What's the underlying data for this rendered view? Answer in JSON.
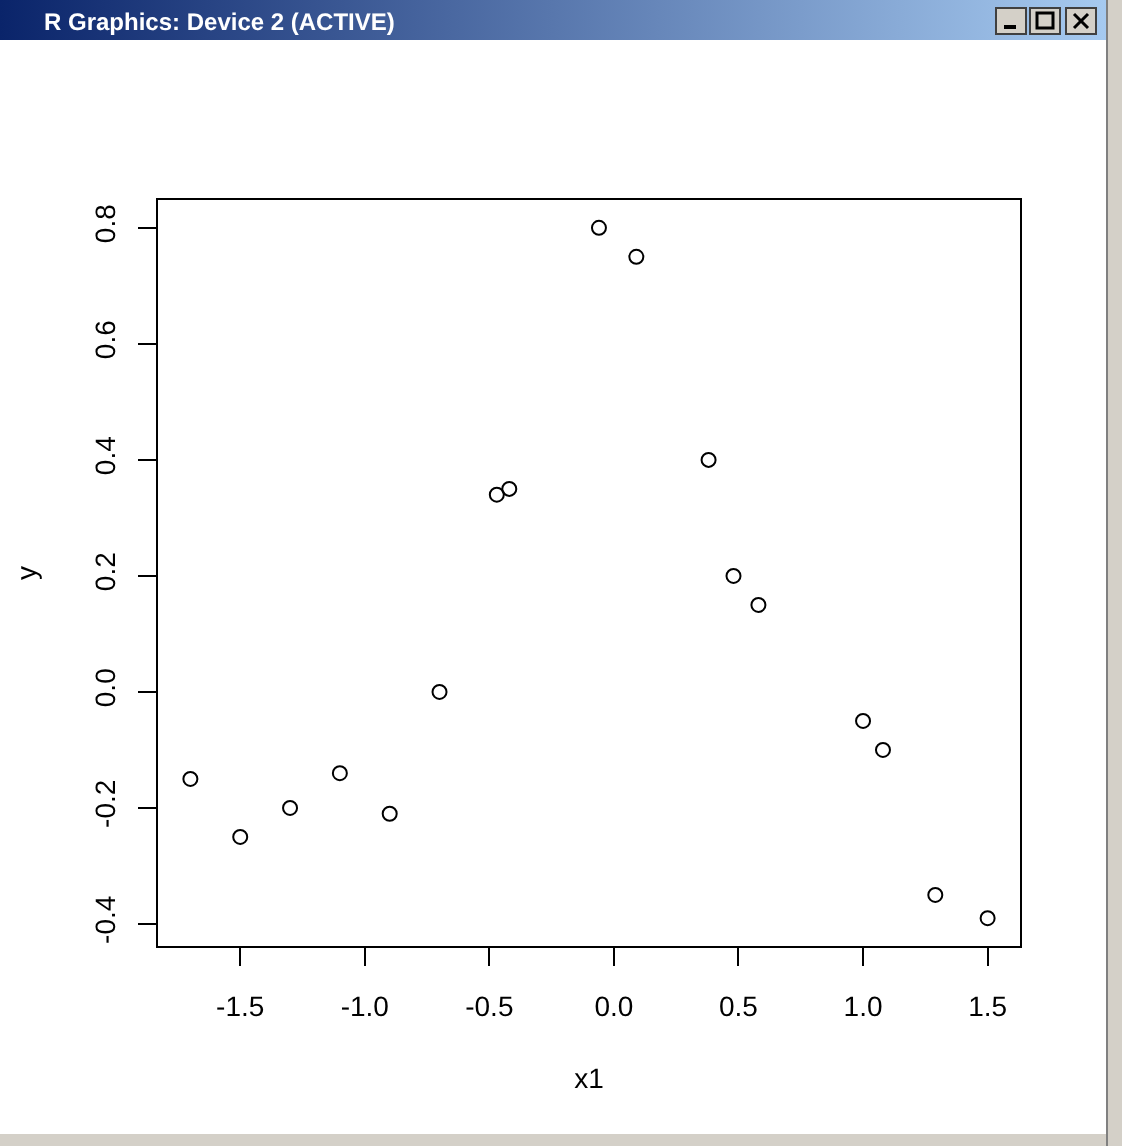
{
  "chart_data": {
    "type": "scatter",
    "title": "R Graphics: Device 2 (ACTIVE)",
    "xlabel": "x1",
    "ylabel": "y",
    "x": [
      -1.7,
      -1.5,
      -1.3,
      -1.1,
      -0.9,
      -0.7,
      -0.47,
      -0.42,
      -0.06,
      0.09,
      0.38,
      0.48,
      0.58,
      1.0,
      1.08,
      1.29,
      1.5
    ],
    "values": [
      -0.15,
      -0.25,
      -0.2,
      -0.14,
      -0.21,
      0.0,
      0.34,
      0.35,
      0.8,
      0.75,
      0.4,
      0.2,
      0.15,
      -0.05,
      -0.1,
      -0.35,
      -0.39
    ],
    "color": "#000000",
    "marker": "circle",
    "xlim": [
      -1.83,
      1.63
    ],
    "ylim": [
      -0.438,
      0.848
    ],
    "xticks": [
      -1.5,
      {
        "value": -1,
        "label": "-1.0"
      },
      -0.5,
      {
        "value": 0,
        "label": "0.0"
      },
      0.5,
      {
        "value": 1,
        "label": "1.0"
      },
      1.5
    ],
    "yticks": [
      -0.4,
      -0.2,
      {
        "value": 0,
        "label": "0.0"
      },
      0.2,
      0.4,
      0.6,
      0.8
    ]
  }
}
